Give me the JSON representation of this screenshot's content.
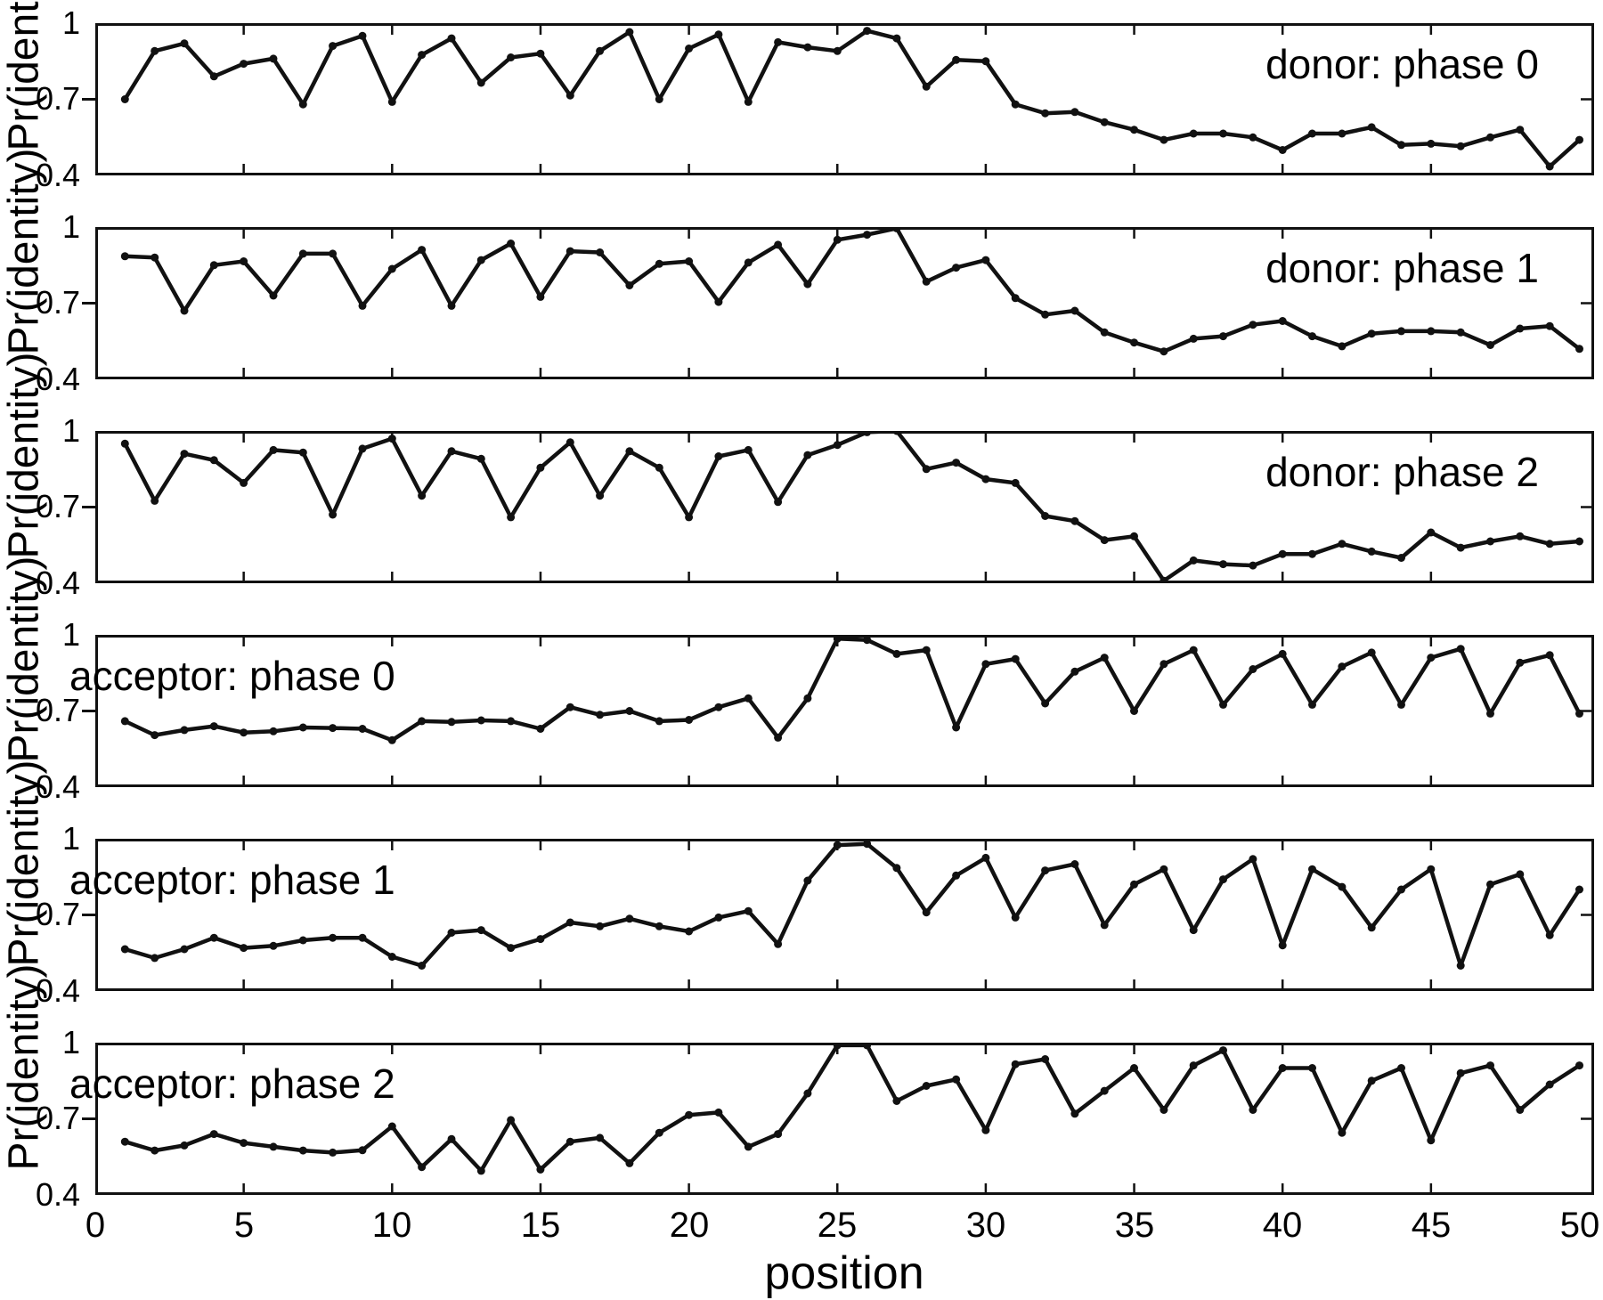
{
  "figure": {
    "xlabel": "position",
    "ylabel": "Pr(identity)",
    "background": "#ffffff",
    "line_color": "#111111",
    "text_color": "#000000",
    "ylim": [
      0.4,
      1
    ],
    "yticks": [
      "1",
      "0.7",
      "0.4"
    ],
    "xlim": [
      0,
      50
    ],
    "xticks": [
      0,
      5,
      10,
      15,
      20,
      25,
      30,
      35,
      40,
      45,
      50
    ],
    "grid": "off",
    "legend": "none"
  },
  "chart_data": [
    {
      "type": "line",
      "name": "donor: phase 0",
      "label_side": "right",
      "x_start": 1,
      "values": [
        0.7,
        0.89,
        0.92,
        0.79,
        0.84,
        0.86,
        0.68,
        0.91,
        0.95,
        0.69,
        0.875,
        0.94,
        0.765,
        0.865,
        0.88,
        0.715,
        0.89,
        0.965,
        0.7,
        0.9,
        0.955,
        0.69,
        0.925,
        0.905,
        0.89,
        0.97,
        0.94,
        0.75,
        0.855,
        0.85,
        0.68,
        0.645,
        0.65,
        0.61,
        0.58,
        0.54,
        0.565,
        0.565,
        0.55,
        0.5,
        0.565,
        0.565,
        0.59,
        0.52,
        0.525,
        0.515,
        0.55,
        0.58,
        0.435,
        0.54
      ]
    },
    {
      "type": "line",
      "name": "donor: phase 1",
      "label_side": "right",
      "x_start": 1,
      "values": [
        0.885,
        0.88,
        0.67,
        0.85,
        0.865,
        0.73,
        0.895,
        0.895,
        0.69,
        0.835,
        0.91,
        0.69,
        0.87,
        0.935,
        0.725,
        0.905,
        0.9,
        0.77,
        0.855,
        0.865,
        0.705,
        0.86,
        0.93,
        0.775,
        0.95,
        0.97,
        0.995,
        0.785,
        0.84,
        0.87,
        0.72,
        0.655,
        0.67,
        0.585,
        0.545,
        0.51,
        0.56,
        0.57,
        0.615,
        0.63,
        0.57,
        0.53,
        0.58,
        0.59,
        0.59,
        0.585,
        0.535,
        0.6,
        0.61,
        0.52
      ]
    },
    {
      "type": "line",
      "name": "donor: phase 2",
      "label_side": "right",
      "x_start": 1,
      "values": [
        0.95,
        0.725,
        0.91,
        0.885,
        0.795,
        0.925,
        0.915,
        0.67,
        0.93,
        0.97,
        0.745,
        0.92,
        0.89,
        0.66,
        0.855,
        0.955,
        0.745,
        0.92,
        0.855,
        0.66,
        0.9,
        0.925,
        0.72,
        0.905,
        0.945,
        0.995,
        1.0,
        0.85,
        0.875,
        0.81,
        0.795,
        0.665,
        0.645,
        0.57,
        0.585,
        0.41,
        0.49,
        0.475,
        0.47,
        0.515,
        0.515,
        0.555,
        0.525,
        0.5,
        0.6,
        0.54,
        0.565,
        0.585,
        0.555,
        0.565
      ]
    },
    {
      "type": "line",
      "name": "acceptor: phase 0",
      "label_side": "left",
      "x_start": 1,
      "values": [
        0.66,
        0.605,
        0.625,
        0.64,
        0.615,
        0.62,
        0.635,
        0.633,
        0.63,
        0.585,
        0.66,
        0.657,
        0.663,
        0.66,
        0.63,
        0.715,
        0.685,
        0.7,
        0.66,
        0.665,
        0.715,
        0.75,
        0.595,
        0.75,
        0.985,
        0.98,
        0.925,
        0.94,
        0.635,
        0.885,
        0.905,
        0.73,
        0.855,
        0.91,
        0.7,
        0.885,
        0.94,
        0.725,
        0.865,
        0.925,
        0.725,
        0.875,
        0.93,
        0.725,
        0.91,
        0.945,
        0.69,
        0.89,
        0.92,
        0.69
      ]
    },
    {
      "type": "line",
      "name": "acceptor: phase 1",
      "label_side": "left",
      "x_start": 1,
      "values": [
        0.565,
        0.53,
        0.565,
        0.61,
        0.57,
        0.578,
        0.6,
        0.61,
        0.61,
        0.535,
        0.5,
        0.63,
        0.64,
        0.57,
        0.605,
        0.67,
        0.655,
        0.685,
        0.655,
        0.635,
        0.69,
        0.715,
        0.585,
        0.835,
        0.975,
        0.98,
        0.885,
        0.71,
        0.855,
        0.925,
        0.69,
        0.875,
        0.9,
        0.66,
        0.82,
        0.88,
        0.64,
        0.84,
        0.92,
        0.58,
        0.88,
        0.81,
        0.65,
        0.8,
        0.88,
        0.5,
        0.82,
        0.86,
        0.62,
        0.8
      ]
    },
    {
      "type": "line",
      "name": "acceptor: phase 2",
      "label_side": "left",
      "x_start": 1,
      "values": [
        0.61,
        0.575,
        0.595,
        0.64,
        0.605,
        0.59,
        0.575,
        0.567,
        0.576,
        0.67,
        0.51,
        0.62,
        0.495,
        0.695,
        0.5,
        0.61,
        0.625,
        0.525,
        0.645,
        0.715,
        0.725,
        0.59,
        0.64,
        0.8,
        0.99,
        0.99,
        0.77,
        0.83,
        0.855,
        0.655,
        0.915,
        0.935,
        0.72,
        0.81,
        0.9,
        0.735,
        0.91,
        0.97,
        0.735,
        0.9,
        0.9,
        0.645,
        0.85,
        0.9,
        0.615,
        0.88,
        0.91,
        0.735,
        0.835,
        0.91
      ]
    }
  ]
}
